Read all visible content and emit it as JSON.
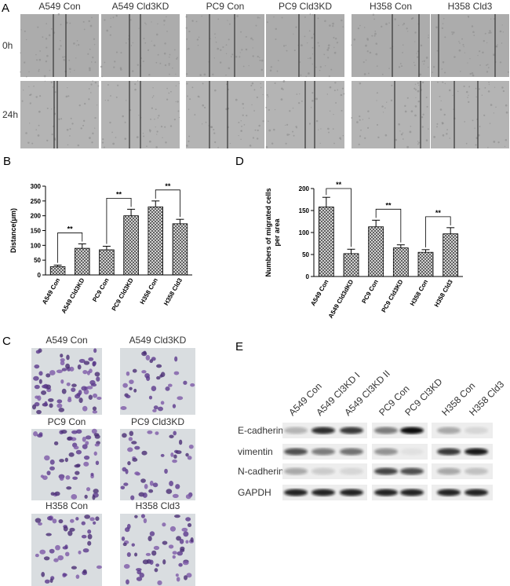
{
  "panel_a": {
    "letter": "A",
    "columns": [
      "A549 Con",
      "A549 Cld3KD",
      "PC9 Con",
      "PC9 Cld3KD",
      "H358 Con",
      "H358 Cld3"
    ],
    "rows": [
      "0h",
      "24h"
    ]
  },
  "chart_data": [
    {
      "type": "bar",
      "letter": "B",
      "y_label": "Distance(μm)",
      "categories": [
        "A549 Con",
        "A549 Cld3KD",
        "PC9 Con",
        "PC9 Cld3KD",
        "H358 Con",
        "H358 Cld3"
      ],
      "values": [
        28,
        90,
        85,
        200,
        230,
        173
      ],
      "errors": [
        5,
        15,
        12,
        22,
        20,
        15
      ],
      "color": "#555555",
      "ylim": [
        0,
        300
      ],
      "yticks": [
        0,
        50,
        100,
        150,
        200,
        250,
        300
      ],
      "annotations": [
        "**",
        "**",
        "**"
      ]
    },
    {
      "type": "bar",
      "letter": "D",
      "y_label": [
        "Numbers of migrated cells",
        "per area"
      ],
      "categories": [
        "A549 Con",
        "A549 Cld3dKD",
        "PC9 Con",
        "PC9 Cld3KD",
        "H358 Con",
        "H358 Cld3"
      ],
      "values": [
        158,
        52,
        113,
        65,
        55,
        97
      ],
      "errors": [
        22,
        10,
        15,
        7,
        6,
        14
      ],
      "color": "#555555",
      "ylim": [
        0,
        200
      ],
      "yticks": [
        0,
        50,
        100,
        150,
        200
      ],
      "annotations": [
        "**",
        "**",
        "**"
      ]
    }
  ],
  "panel_c": {
    "letter": "C",
    "labels": [
      "A549 Con",
      "A549 Cld3KD",
      "PC9 Con",
      "PC9 Cld3KD",
      "H358 Con",
      "H358 Cld3"
    ]
  },
  "panel_e": {
    "letter": "E",
    "lanes": [
      "A549 Con",
      "A549 Cl3KD I",
      "A549 Cl3KD II",
      "PC9 Con",
      "PC9 Cl3KD",
      "H358 Con",
      "H358 Cld3"
    ],
    "proteins": [
      "E-cadherin",
      "vimentin",
      "N-cadherin",
      "GAPDH"
    ]
  }
}
